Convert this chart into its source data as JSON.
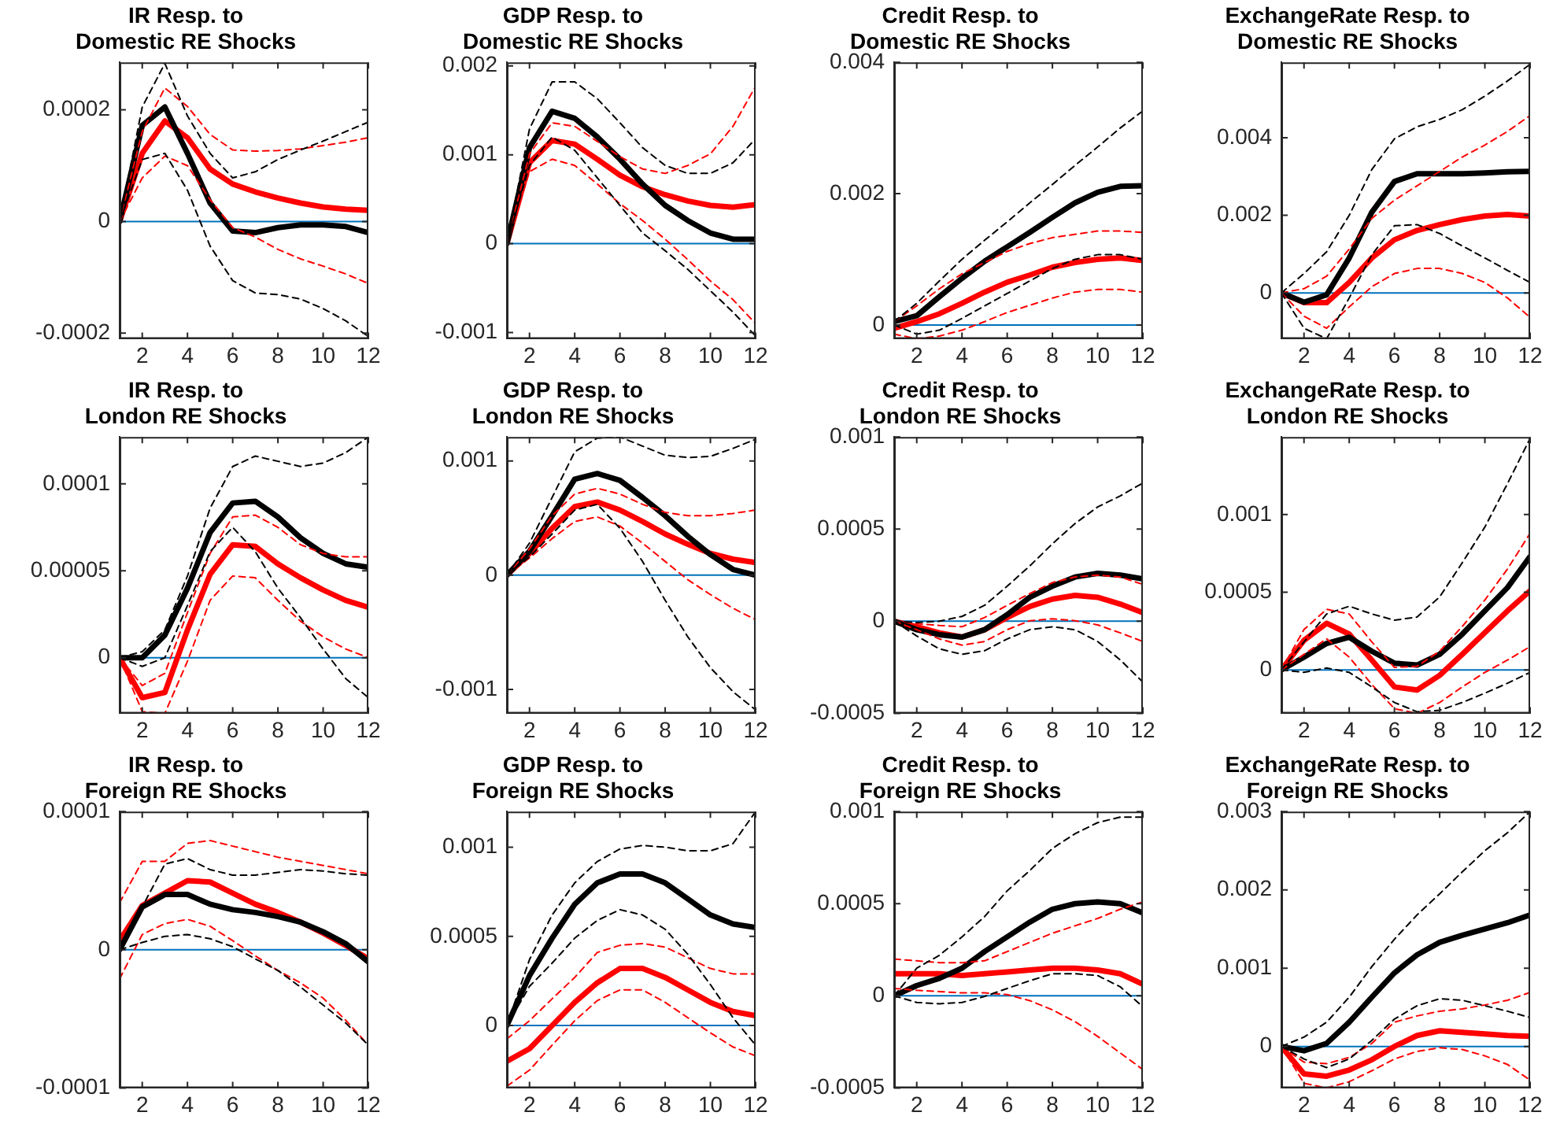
{
  "chart_data": [
    {
      "type": "line",
      "title": "IR Resp. to\nDomestic RE Shocks",
      "x": [
        1,
        2,
        3,
        4,
        5,
        6,
        7,
        8,
        9,
        10,
        11,
        12
      ],
      "xlim": [
        1,
        12
      ],
      "xticks": [
        2,
        4,
        6,
        8,
        10,
        12
      ],
      "ylim": [
        -0.00021,
        0.000285
      ],
      "yticks": [
        -0.0002,
        0,
        0.0002
      ],
      "grid": false,
      "ref_lines": [
        {
          "axis": "y",
          "value": 0,
          "color": "#0072bd"
        }
      ],
      "series": [
        {
          "color": "#000000",
          "line_style": "dashed",
          "values": [
            0,
            0.000205,
            0.000283,
            0.000189,
            0.000122,
            7.8e-05,
            8.9e-05,
            0.000111,
            0.000128,
            0.000144,
            0.000161,
            0.000178
          ]
        },
        {
          "color": "#000000",
          "line_style": "dashed",
          "values": [
            0,
            0.000111,
            0.000122,
            5.6e-05,
            -4.4e-05,
            -0.000106,
            -0.000128,
            -0.000131,
            -0.000139,
            -0.000156,
            -0.000178,
            -0.000206
          ]
        },
        {
          "color": "#ff0000",
          "line_style": "dashed",
          "values": [
            0,
            0.000161,
            0.000239,
            0.000206,
            0.000156,
            0.000128,
            0.000126,
            0.000127,
            0.00013,
            0.000136,
            0.000142,
            0.00015
          ]
        },
        {
          "color": "#ff0000",
          "line_style": "dashed",
          "values": [
            0,
            7.8e-05,
            0.000117,
            0.0001,
            3.9e-05,
            -1.1e-05,
            -2.8e-05,
            -5e-05,
            -6.7e-05,
            -8e-05,
            -9.4e-05,
            -0.000111
          ]
        },
        {
          "color": "#000000",
          "line_style": "solid",
          "values": [
            0,
            0.000172,
            0.000205,
            0.000122,
            3.3e-05,
            -1.7e-05,
            -2e-05,
            -1.1e-05,
            -6e-06,
            -6e-06,
            -9e-06,
            -2e-05
          ]
        },
        {
          "color": "#ff0000",
          "line_style": "solid",
          "values": [
            0,
            0.000122,
            0.00018,
            0.00015,
            9.4e-05,
            6.7e-05,
            5.3e-05,
            4.2e-05,
            3.3e-05,
            2.6e-05,
            2.2e-05,
            2e-05
          ]
        }
      ]
    },
    {
      "type": "line",
      "title": "GDP Resp. to\nDomestic RE Shocks",
      "x": [
        1,
        2,
        3,
        4,
        5,
        6,
        7,
        8,
        9,
        10,
        11,
        12
      ],
      "xlim": [
        1,
        12
      ],
      "xticks": [
        2,
        4,
        6,
        8,
        10,
        12
      ],
      "ylim": [
        -0.00107,
        0.00204
      ],
      "yticks": [
        -0.001,
        0,
        0.001,
        0.002
      ],
      "grid": false,
      "ref_lines": [
        {
          "axis": "y",
          "value": 0,
          "color": "#0072bd"
        }
      ],
      "series": [
        {
          "color": "#000000",
          "line_style": "dashed",
          "values": [
            0,
            0.00129,
            0.00182,
            0.00182,
            0.00163,
            0.00136,
            0.00108,
            0.00088,
            0.00079,
            0.00079,
            0.00091,
            0.00118
          ]
        },
        {
          "color": "#000000",
          "line_style": "dashed",
          "values": [
            0,
            0.00088,
            0.0012,
            0.00105,
            0.00074,
            0.00043,
            0.00012,
            -8e-05,
            -0.00029,
            -0.00053,
            -0.00077,
            -0.00104
          ]
        },
        {
          "color": "#ff0000",
          "line_style": "dashed",
          "values": [
            0,
            0.00101,
            0.00136,
            0.00132,
            0.00115,
            0.00098,
            0.00084,
            0.00079,
            0.00088,
            0.00101,
            0.00132,
            0.00177
          ]
        },
        {
          "color": "#ff0000",
          "line_style": "dashed",
          "values": [
            0,
            0.00081,
            0.00095,
            0.00088,
            0.00067,
            0.00045,
            0.00026,
            5e-05,
            -0.00018,
            -0.00042,
            -0.00063,
            -0.0009
          ]
        },
        {
          "color": "#000000",
          "line_style": "solid",
          "values": [
            0,
            0.00108,
            0.00149,
            0.00141,
            0.0012,
            0.00095,
            0.00067,
            0.00043,
            0.00026,
            0.00012,
            5e-05,
            5e-05
          ]
        },
        {
          "color": "#ff0000",
          "line_style": "solid",
          "values": [
            0,
            0.00091,
            0.00116,
            0.00112,
            0.00095,
            0.00077,
            0.00064,
            0.00055,
            0.00048,
            0.00043,
            0.00041,
            0.00044
          ]
        }
      ]
    },
    {
      "type": "line",
      "title": "Credit Resp. to\nDomestic RE Shocks",
      "x": [
        1,
        2,
        3,
        4,
        5,
        6,
        7,
        8,
        9,
        10,
        11,
        12
      ],
      "xlim": [
        1,
        12
      ],
      "xticks": [
        2,
        4,
        6,
        8,
        10,
        12
      ],
      "ylim": [
        -0.00021,
        0.004
      ],
      "yticks": [
        0,
        0.002,
        0.004
      ],
      "grid": false,
      "ref_lines": [
        {
          "axis": "y",
          "value": 0,
          "color": "#0072bd"
        }
      ],
      "series": [
        {
          "color": "#000000",
          "line_style": "dashed",
          "values": [
            5e-05,
            0.00033,
            0.00067,
            0.001,
            0.00129,
            0.00157,
            0.00186,
            0.00214,
            0.00243,
            0.00271,
            0.003,
            0.00326
          ]
        },
        {
          "color": "#000000",
          "line_style": "dashed",
          "values": [
            0,
            -0.00014,
            -8e-05,
            0.0001,
            0.00029,
            0.00048,
            0.00067,
            0.00086,
            0.001,
            0.00107,
            0.00107,
            0.001
          ]
        },
        {
          "color": "#ff0000",
          "line_style": "dashed",
          "values": [
            5e-05,
            0.00029,
            0.00055,
            0.00078,
            0.00095,
            0.00112,
            0.00124,
            0.00133,
            0.00138,
            0.00143,
            0.00143,
            0.00141
          ]
        },
        {
          "color": "#ff0000",
          "line_style": "dashed",
          "values": [
            -0.00014,
            -0.00021,
            -0.00017,
            -8e-05,
            5e-05,
            0.00019,
            0.0003,
            0.00041,
            0.0005,
            0.00054,
            0.00054,
            0.0005
          ]
        },
        {
          "color": "#000000",
          "line_style": "solid",
          "values": [
            5e-05,
            0.00014,
            0.00043,
            0.00071,
            0.00097,
            0.00119,
            0.00141,
            0.00164,
            0.00186,
            0.00202,
            0.00211,
            0.00212
          ]
        },
        {
          "color": "#ff0000",
          "line_style": "solid",
          "values": [
            -5e-05,
            5e-05,
            0.00017,
            0.00033,
            0.0005,
            0.00065,
            0.00076,
            0.00088,
            0.00095,
            0.001,
            0.00102,
            0.00098
          ]
        }
      ]
    },
    {
      "type": "line",
      "title": "ExchangeRate Resp. to\nDomestic RE Shocks",
      "x": [
        1,
        2,
        3,
        4,
        5,
        6,
        7,
        8,
        9,
        10,
        11,
        12
      ],
      "xlim": [
        1,
        12
      ],
      "xticks": [
        2,
        4,
        6,
        8,
        10,
        12
      ],
      "ylim": [
        -0.00118,
        0.00594
      ],
      "yticks": [
        0,
        0.002,
        0.004
      ],
      "grid": false,
      "ref_lines": [
        {
          "axis": "y",
          "value": 0,
          "color": "#0072bd"
        }
      ],
      "series": [
        {
          "color": "#000000",
          "line_style": "dashed",
          "values": [
            0,
            0.0005,
            0.00106,
            0.002,
            0.00318,
            0.00397,
            0.00428,
            0.00447,
            0.00472,
            0.00507,
            0.00546,
            0.00589
          ]
        },
        {
          "color": "#000000",
          "line_style": "dashed",
          "values": [
            0,
            -0.00091,
            -0.00118,
            -0.00013,
            0.00098,
            0.00173,
            0.00176,
            0.00153,
            0.00121,
            0.0009,
            0.00058,
            0.00027
          ]
        },
        {
          "color": "#ff0000",
          "line_style": "dashed",
          "values": [
            0,
            0.00011,
            0.00043,
            0.00113,
            0.00192,
            0.00239,
            0.00276,
            0.00313,
            0.0035,
            0.00381,
            0.00416,
            0.00457
          ]
        },
        {
          "color": "#ff0000",
          "line_style": "dashed",
          "values": [
            0,
            -0.0006,
            -0.00091,
            -0.00036,
            0.00016,
            0.0005,
            0.00063,
            0.00063,
            0.0005,
            0.00027,
            -0.00013,
            -0.00063
          ]
        },
        {
          "color": "#000000",
          "line_style": "solid",
          "values": [
            0,
            -0.00024,
            -5e-05,
            0.0009,
            0.00208,
            0.00287,
            0.00307,
            0.00307,
            0.00307,
            0.00309,
            0.00312,
            0.00313
          ]
        },
        {
          "color": "#ff0000",
          "line_style": "solid",
          "values": [
            0,
            -0.00025,
            -0.00025,
            0.00027,
            0.0009,
            0.00137,
            0.00161,
            0.00176,
            0.00189,
            0.00198,
            0.00202,
            0.00198
          ]
        }
      ]
    },
    {
      "type": "line",
      "title": "IR Resp. to\nLondon RE Shocks",
      "x": [
        1,
        2,
        3,
        4,
        5,
        6,
        7,
        8,
        9,
        10,
        11,
        12
      ],
      "xlim": [
        1,
        12
      ],
      "xticks": [
        2,
        4,
        6,
        8,
        10,
        12
      ],
      "ylim": [
        -3.2e-05,
        0.000127
      ],
      "yticks": [
        0,
        {
          "value": 5e-05,
          "label": "0.00005"
        },
        0.0001
      ],
      "grid": false,
      "ref_lines": [
        {
          "axis": "y",
          "value": 0,
          "color": "#0072bd"
        }
      ],
      "series": [
        {
          "color": "#000000",
          "line_style": "dashed",
          "values": [
            0,
            3.5e-06,
            1.6e-05,
            4.7e-05,
            8.6e-05,
            0.00011,
            0.000116,
            0.000113,
            0.00011,
            0.000112,
            0.000118,
            0.000127
          ]
        },
        {
          "color": "#000000",
          "line_style": "dashed",
          "values": [
            0,
            -5e-06,
            0,
            3e-05,
            6.1e-05,
            7.5e-05,
            6.1e-05,
            4e-05,
            2.3e-05,
            5e-06,
            -1.2e-05,
            -2.3e-05
          ]
        },
        {
          "color": "#ff0000",
          "line_style": "dashed",
          "values": [
            0,
            -1.6e-05,
            -9e-06,
            2.6e-05,
            6e-05,
            8.1e-05,
            8.2e-05,
            7.5e-05,
            6.5e-05,
            6e-05,
            5.8e-05,
            5.8e-05
          ]
        },
        {
          "color": "#ff0000",
          "line_style": "dashed",
          "values": [
            0,
            -3.1e-05,
            -3.2e-05,
            -2e-06,
            3.3e-05,
            4.7e-05,
            4.6e-05,
            3.3e-05,
            2.1e-05,
            1.2e-05,
            5e-06,
            0
          ]
        },
        {
          "color": "#000000",
          "line_style": "solid",
          "values": [
            0,
            0,
            1.3e-05,
            4e-05,
            7.2e-05,
            8.9e-05,
            9e-05,
            8.1e-05,
            6.9e-05,
            6e-05,
            5.4e-05,
            5.2e-05
          ]
        },
        {
          "color": "#ff0000",
          "line_style": "solid",
          "values": [
            0,
            -2.3e-05,
            -2e-05,
            1.6e-05,
            4.8e-05,
            6.5e-05,
            6.4e-05,
            5.4e-05,
            4.6e-05,
            3.9e-05,
            3.3e-05,
            2.9e-05
          ]
        }
      ]
    },
    {
      "type": "line",
      "title": "GDP Resp. to\nLondon RE Shocks",
      "x": [
        1,
        2,
        3,
        4,
        5,
        6,
        7,
        8,
        9,
        10,
        11,
        12
      ],
      "xlim": [
        1,
        12
      ],
      "xticks": [
        2,
        4,
        6,
        8,
        10,
        12
      ],
      "ylim": [
        -0.00121,
        0.00121
      ],
      "yticks": [
        -0.001,
        0,
        0.001
      ],
      "grid": false,
      "ref_lines": [
        {
          "axis": "y",
          "value": 0,
          "color": "#0072bd"
        }
      ],
      "series": [
        {
          "color": "#000000",
          "line_style": "dashed",
          "values": [
            0,
            0.00028,
            0.00068,
            0.00108,
            0.0012,
            0.00121,
            0.00113,
            0.00105,
            0.00103,
            0.00104,
            0.00111,
            0.00119
          ]
        },
        {
          "color": "#000000",
          "line_style": "dashed",
          "values": [
            0,
            0.00016,
            0.00036,
            0.00057,
            0.00062,
            0.00041,
            0.00012,
            -0.00022,
            -0.00054,
            -0.00081,
            -0.00102,
            -0.00118
          ]
        },
        {
          "color": "#ff0000",
          "line_style": "dashed",
          "values": [
            0,
            0.00023,
            0.00052,
            0.00071,
            0.00076,
            0.00071,
            0.00062,
            0.00055,
            0.00052,
            0.00052,
            0.00054,
            0.00057
          ]
        },
        {
          "color": "#ff0000",
          "line_style": "dashed",
          "values": [
            0,
            0.00015,
            0.00032,
            0.00047,
            0.00051,
            0.00043,
            0.00028,
            0.00012,
            -4e-05,
            -0.00017,
            -0.00029,
            -0.00039
          ]
        },
        {
          "color": "#000000",
          "line_style": "solid",
          "values": [
            0,
            0.00021,
            0.00052,
            0.00084,
            0.00089,
            0.00083,
            0.00068,
            0.00052,
            0.00034,
            0.00018,
            5e-05,
            0
          ]
        },
        {
          "color": "#ff0000",
          "line_style": "solid",
          "values": [
            0,
            0.00019,
            0.00041,
            0.0006,
            0.00064,
            0.00057,
            0.00047,
            0.00036,
            0.00027,
            0.00019,
            0.00014,
            0.00011
          ]
        }
      ]
    },
    {
      "type": "line",
      "title": "Credit Resp. to\nLondon RE Shocks",
      "x": [
        1,
        2,
        3,
        4,
        5,
        6,
        7,
        8,
        9,
        10,
        11,
        12
      ],
      "xlim": [
        1,
        12
      ],
      "xticks": [
        2,
        4,
        6,
        8,
        10,
        12
      ],
      "ylim": [
        -0.0005,
        0.001
      ],
      "yticks": [
        -0.0005,
        0,
        0.0005,
        0.001
      ],
      "grid": false,
      "ref_lines": [
        {
          "axis": "y",
          "value": 0,
          "color": "#0072bd"
        }
      ],
      "series": [
        {
          "color": "#000000",
          "line_style": "dashed",
          "values": [
            0,
            -7e-06,
            0,
            2.6e-05,
            8.6e-05,
            0.00019,
            0.0003,
            0.00042,
            0.00053,
            0.00062,
            0.00068,
            0.00075
          ]
        },
        {
          "color": "#000000",
          "line_style": "dashed",
          "values": [
            0,
            -8e-05,
            -0.00015,
            -0.00018,
            -0.00016,
            -9.6e-05,
            -4.6e-05,
            -3e-05,
            -4.6e-05,
            -0.00011,
            -0.00021,
            -0.00033
          ]
        },
        {
          "color": "#ff0000",
          "line_style": "dashed",
          "values": [
            0,
            -1.3e-05,
            -2.3e-05,
            -3e-05,
            2e-05,
            8.6e-05,
            0.00015,
            0.00021,
            0.00024,
            0.00025,
            0.00024,
            0.0002
          ]
        },
        {
          "color": "#ff0000",
          "line_style": "dashed",
          "values": [
            0,
            -4.6e-05,
            -9.6e-05,
            -0.00013,
            -0.00011,
            -4.6e-05,
            3e-06,
            1.3e-05,
            3e-06,
            -2e-05,
            -6.3e-05,
            -0.00011
          ]
        },
        {
          "color": "#000000",
          "line_style": "solid",
          "values": [
            0,
            -4.6e-05,
            -7.3e-05,
            -8.6e-05,
            -4.6e-05,
            3.6e-05,
            0.00013,
            0.00019,
            0.00024,
            0.00026,
            0.00025,
            0.00023
          ]
        },
        {
          "color": "#ff0000",
          "line_style": "solid",
          "values": [
            0,
            -3e-05,
            -6.3e-05,
            -8.6e-05,
            -4.6e-05,
            2e-05,
            8e-05,
            0.00012,
            0.00014,
            0.00013,
            9.3e-05,
            4.6e-05
          ]
        }
      ]
    },
    {
      "type": "line",
      "title": "ExchangeRate Resp. to\nLondon RE Shocks",
      "x": [
        1,
        2,
        3,
        4,
        5,
        6,
        7,
        8,
        9,
        10,
        11,
        12
      ],
      "xlim": [
        1,
        12
      ],
      "xticks": [
        2,
        4,
        6,
        8,
        10,
        12
      ],
      "ylim": [
        -0.00028,
        0.0015
      ],
      "yticks": [
        0,
        0.0005,
        0.001
      ],
      "grid": false,
      "ref_lines": [
        {
          "axis": "y",
          "value": 0,
          "color": "#0072bd"
        }
      ],
      "series": [
        {
          "color": "#000000",
          "line_style": "dashed",
          "values": [
            0,
            0.00018,
            0.00036,
            0.00041,
            0.00036,
            0.00032,
            0.00034,
            0.00047,
            0.00069,
            0.00092,
            0.0012,
            0.00149
          ]
        },
        {
          "color": "#000000",
          "line_style": "dashed",
          "values": [
            0,
            -1.6e-05,
            1.2e-05,
            -1.6e-05,
            -0.00011,
            -0.00021,
            -0.00027,
            -0.00026,
            -0.00021,
            -0.00015,
            -8.6e-05,
            -1.6e-05
          ]
        },
        {
          "color": "#ff0000",
          "line_style": "dashed",
          "values": [
            0,
            0.00026,
            0.00039,
            0.00036,
            0.00018,
            1.6e-05,
            2.3e-05,
            0.00012,
            0.00028,
            0.00045,
            0.00065,
            0.00088
          ]
        },
        {
          "color": "#ff0000",
          "line_style": "dashed",
          "values": [
            0,
            0.0001,
            0.0002,
            8.2e-05,
            -9.4e-05,
            -0.00025,
            -0.00028,
            -0.00021,
            -0.00011,
            -1.6e-05,
            6.3e-05,
            0.00015
          ]
        },
        {
          "color": "#000000",
          "line_style": "solid",
          "values": [
            0,
            8.2e-05,
            0.00017,
            0.00021,
            0.00012,
            4.3e-05,
            3.1e-05,
            0.0001,
            0.00023,
            0.00038,
            0.00053,
            0.00073
          ]
        },
        {
          "color": "#ff0000",
          "line_style": "solid",
          "values": [
            0,
            0.00019,
            0.0003,
            0.00023,
            6.3e-05,
            -0.00011,
            -0.00013,
            -3.5e-05,
            0.0001,
            0.00024,
            0.00038,
            0.00051
          ]
        }
      ]
    },
    {
      "type": "line",
      "title": "IR Resp. to\nForeign RE Shocks",
      "x": [
        1,
        2,
        3,
        4,
        5,
        6,
        7,
        8,
        9,
        10,
        11,
        12
      ],
      "xlim": [
        1,
        12
      ],
      "xticks": [
        2,
        4,
        6,
        8,
        10,
        12
      ],
      "ylim": [
        -0.0001,
        0.0001
      ],
      "yticks": [
        -0.0001,
        0,
        0.0001
      ],
      "grid": false,
      "ref_lines": [
        {
          "axis": "y",
          "value": 0,
          "color": "#0072bd"
        }
      ],
      "series": [
        {
          "color": "#000000",
          "line_style": "dashed",
          "values": [
            0,
            3.1e-05,
            6.2e-05,
            6.6e-05,
            5.8e-05,
            5.4e-05,
            5.4e-05,
            5.6e-05,
            5.8e-05,
            5.7e-05,
            5.5e-05,
            5.4e-05
          ]
        },
        {
          "color": "#000000",
          "line_style": "dashed",
          "values": [
            0,
            5.3e-06,
            9.7e-06,
            1.1e-05,
            8e-06,
            2.2e-06,
            -6.6e-06,
            -1.5e-05,
            -2.7e-05,
            -4e-05,
            -5.3e-05,
            -6.9e-05
          ]
        },
        {
          "color": "#ff0000",
          "line_style": "dashed",
          "values": [
            3.4e-05,
            6.4e-05,
            6.4e-05,
            7.7e-05,
            7.9e-05,
            7.5e-05,
            7.1e-05,
            6.7e-05,
            6.4e-05,
            6.1e-05,
            5.8e-05,
            5.5e-05
          ]
        },
        {
          "color": "#ff0000",
          "line_style": "dashed",
          "values": [
            -2.1e-05,
            1.1e-05,
            1.9e-05,
            2.2e-05,
            1.7e-05,
            6.6e-06,
            -4.4e-06,
            -1.5e-05,
            -2.4e-05,
            -3.5e-05,
            -5.1e-05,
            -6.9e-05
          ]
        },
        {
          "color": "#000000",
          "line_style": "solid",
          "values": [
            0,
            3.1e-05,
            4e-05,
            4e-05,
            3.3e-05,
            2.9e-05,
            2.7e-05,
            2.4e-05,
            2e-05,
            1.3e-05,
            4.4e-06,
            -8.8e-06
          ]
        },
        {
          "color": "#ff0000",
          "line_style": "solid",
          "values": [
            6.6e-06,
            3.2e-05,
            4.1e-05,
            5e-05,
            4.9e-05,
            4.1e-05,
            3.3e-05,
            2.7e-05,
            2e-05,
            1.2e-05,
            3.1e-06,
            -6.6e-06
          ]
        }
      ]
    },
    {
      "type": "line",
      "title": "GDP Resp. to\nForeign RE Shocks",
      "x": [
        1,
        2,
        3,
        4,
        5,
        6,
        7,
        8,
        9,
        10,
        11,
        12
      ],
      "xlim": [
        1,
        12
      ],
      "xticks": [
        2,
        4,
        6,
        8,
        10,
        12
      ],
      "ylim": [
        -0.00035,
        0.0012
      ],
      "yticks": [
        0,
        0.0005,
        0.001
      ],
      "grid": false,
      "ref_lines": [
        {
          "axis": "y",
          "value": 0,
          "color": "#0072bd"
        }
      ],
      "series": [
        {
          "color": "#000000",
          "line_style": "dashed",
          "values": [
            0,
            0.00037,
            0.00062,
            0.0008,
            0.00092,
            0.00099,
            0.00101,
            0.001,
            0.00098,
            0.00098,
            0.00102,
            0.0012
          ]
        },
        {
          "color": "#000000",
          "line_style": "dashed",
          "values": [
            0,
            0.00022,
            0.00035,
            0.00049,
            0.00059,
            0.00065,
            0.00062,
            0.00054,
            0.0004,
            0.00023,
            4.4e-05,
            -0.00011
          ]
        },
        {
          "color": "#ff0000",
          "line_style": "dashed",
          "values": [
            -7.5e-05,
            2.7e-05,
            0.00015,
            0.00027,
            0.00041,
            0.00045,
            0.00046,
            0.00044,
            0.00038,
            0.00032,
            0.00029,
            0.00029
          ]
        },
        {
          "color": "#ff0000",
          "line_style": "dashed",
          "values": [
            -0.00034,
            -0.00025,
            -0.00011,
            2.7e-05,
            0.00014,
            0.0002,
            0.0002,
            0.00013,
            4.4e-05,
            -4.1e-05,
            -0.00012,
            -0.00017
          ]
        },
        {
          "color": "#000000",
          "line_style": "solid",
          "values": [
            0,
            0.00028,
            0.00049,
            0.00068,
            0.0008,
            0.00085,
            0.00085,
            0.0008,
            0.00071,
            0.00062,
            0.00057,
            0.00055
          ]
        },
        {
          "color": "#ff0000",
          "line_style": "solid",
          "values": [
            -0.0002,
            -0.00013,
            0,
            0.00013,
            0.00024,
            0.00032,
            0.00032,
            0.00027,
            0.0002,
            0.00013,
            7.9e-05,
            5.5e-05
          ]
        }
      ]
    },
    {
      "type": "line",
      "title": "Credit Resp. to\nForeign RE Shocks",
      "x": [
        1,
        2,
        3,
        4,
        5,
        6,
        7,
        8,
        9,
        10,
        11,
        12
      ],
      "xlim": [
        1,
        12
      ],
      "xticks": [
        2,
        4,
        6,
        8,
        10,
        12
      ],
      "ylim": [
        -0.0005,
        0.001
      ],
      "yticks": [
        -0.0005,
        0,
        0.0005,
        0.001
      ],
      "grid": false,
      "ref_lines": [
        {
          "axis": "y",
          "value": 0,
          "color": "#0072bd"
        }
      ],
      "series": [
        {
          "color": "#000000",
          "line_style": "dashed",
          "values": [
            0,
            0.00015,
            0.00022,
            0.00032,
            0.00043,
            0.00057,
            0.00068,
            0.0008,
            0.00088,
            0.00094,
            0.00097,
            0.00097
          ]
        },
        {
          "color": "#000000",
          "line_style": "dashed",
          "values": [
            0,
            -3.6e-05,
            -4.3e-05,
            -3.6e-05,
            -3.3e-06,
            4e-05,
            8.2e-05,
            0.00012,
            0.00012,
            0.00011,
            4.9e-05,
            -5.9e-05
          ]
        },
        {
          "color": "#ff0000",
          "line_style": "dashed",
          "values": [
            0.0002,
            0.00019,
            0.00018,
            0.00018,
            0.00019,
            0.00024,
            0.00029,
            0.00034,
            0.00038,
            0.00042,
            0.00047,
            0.00051
          ]
        },
        {
          "color": "#ff0000",
          "line_style": "dashed",
          "values": [
            4e-05,
            3e-05,
            2.3e-05,
            1.6e-05,
            1.6e-05,
            6.6e-06,
            -2.6e-05,
            -7.6e-05,
            -0.00014,
            -0.00022,
            -0.00031,
            -0.0004
          ]
        },
        {
          "color": "#000000",
          "line_style": "solid",
          "values": [
            0,
            5.6e-05,
            9.5e-05,
            0.00015,
            0.00024,
            0.00032,
            0.0004,
            0.00047,
            0.0005,
            0.00051,
            0.0005,
            0.00045
          ]
        },
        {
          "color": "#ff0000",
          "line_style": "solid",
          "values": [
            0.00012,
            0.00012,
            0.00012,
            0.00011,
            0.00012,
            0.00013,
            0.00014,
            0.00015,
            0.00015,
            0.00014,
            0.00012,
            6.3e-05
          ]
        }
      ]
    },
    {
      "type": "line",
      "title": "ExchangeRate Resp. to\nForeign RE Shocks",
      "x": [
        1,
        2,
        3,
        4,
        5,
        6,
        7,
        8,
        9,
        10,
        11,
        12
      ],
      "xlim": [
        1,
        12
      ],
      "xticks": [
        2,
        4,
        6,
        8,
        10,
        12
      ],
      "ylim": [
        -0.00053,
        0.003
      ],
      "yticks": [
        0,
        0.001,
        0.002,
        0.003
      ],
      "grid": false,
      "ref_lines": [
        {
          "axis": "y",
          "value": 0,
          "color": "#0072bd"
        }
      ],
      "series": [
        {
          "color": "#000000",
          "line_style": "dashed",
          "values": [
            0,
            0.00012,
            0.00031,
            0.00063,
            0.00102,
            0.00137,
            0.00168,
            0.00195,
            0.00223,
            0.0025,
            0.00273,
            0.003
          ]
        },
        {
          "color": "#000000",
          "line_style": "dashed",
          "values": [
            0,
            -0.00016,
            -0.00027,
            -0.00016,
            7.8e-05,
            0.00035,
            0.00052,
            0.00061,
            0.00059,
            0.00052,
            0.00045,
            0.00037
          ]
        },
        {
          "color": "#ff0000",
          "line_style": "dashed",
          "values": [
            0,
            -0.0002,
            -0.00022,
            -0.00014,
            3.9e-05,
            0.00031,
            0.00039,
            0.00045,
            0.00048,
            0.00053,
            0.00059,
            0.00069
          ]
        },
        {
          "color": "#ff0000",
          "line_style": "dashed",
          "values": [
            0,
            -0.00047,
            -0.00053,
            -0.00045,
            -0.00031,
            -0.00016,
            -6.3e-05,
            -1.6e-05,
            -3.9e-05,
            -0.00012,
            -0.00023,
            -0.00043
          ]
        },
        {
          "color": "#000000",
          "line_style": "solid",
          "values": [
            0,
            -5.5e-05,
            3.9e-05,
            0.00031,
            0.00063,
            0.00094,
            0.00117,
            0.00133,
            0.00142,
            0.0015,
            0.00158,
            0.00168
          ]
        },
        {
          "color": "#ff0000",
          "line_style": "solid",
          "values": [
            0,
            -0.00035,
            -0.00038,
            -0.0003,
            -0.00017,
            0,
            0.00014,
            0.0002,
            0.00018,
            0.00016,
            0.00014,
            0.00013
          ]
        }
      ]
    }
  ]
}
